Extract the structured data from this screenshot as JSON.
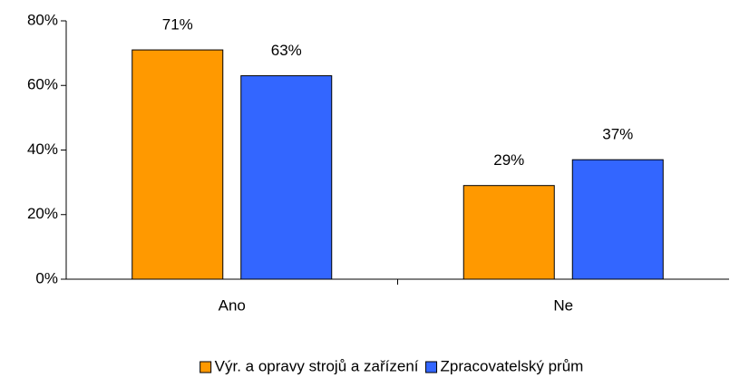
{
  "chart_data": {
    "type": "bar",
    "categories": [
      "Ano",
      "Ne"
    ],
    "series": [
      {
        "name": "Výr. a opravy strojů a zařízení",
        "color": "#FF9900",
        "values": [
          71,
          29
        ],
        "value_labels": [
          "71%",
          "29%"
        ]
      },
      {
        "name": "Zpracovatelský prům",
        "color": "#3366FF",
        "values": [
          63,
          37
        ],
        "value_labels": [
          "63%",
          "37%"
        ]
      }
    ],
    "ylim": [
      0,
      80
    ],
    "yticks": [
      {
        "value": 0,
        "label": "0%"
      },
      {
        "value": 20,
        "label": "20%"
      },
      {
        "value": 40,
        "label": "40%"
      },
      {
        "value": 60,
        "label": "60%"
      },
      {
        "value": 80,
        "label": "80%"
      }
    ],
    "legend": "bottom"
  }
}
